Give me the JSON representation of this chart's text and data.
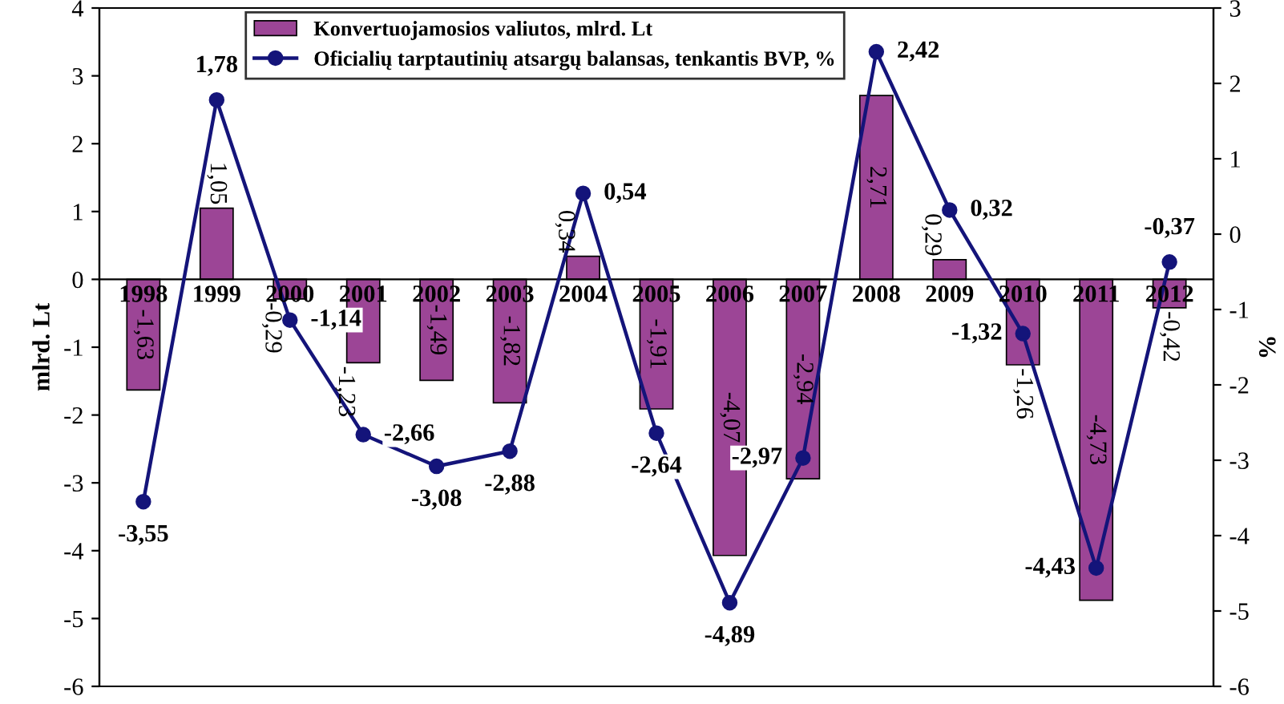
{
  "chart_data": {
    "type": "bar",
    "categories": [
      "1998",
      "1999",
      "2000",
      "2001",
      "2002",
      "2003",
      "2004",
      "2005",
      "2006",
      "2007",
      "2008",
      "2009",
      "2010",
      "2011",
      "2012"
    ],
    "ylabel": "mlrd. Lt",
    "y2label": "%",
    "ylim": [
      -6,
      4
    ],
    "yticks": [
      -6,
      -5,
      -4,
      -3,
      -2,
      -1,
      0,
      1,
      2,
      3,
      4
    ],
    "y2lim": [
      -6,
      3
    ],
    "y2ticks": [
      -6,
      -5,
      -4,
      -3,
      -2,
      -1,
      0,
      1,
      2,
      3
    ],
    "grid": false,
    "legend": "top",
    "marker": "circle",
    "line_style": "solid",
    "series": [
      {
        "name": "Konvertuojamosios valiutos, mlrd. Lt",
        "color": "#9c4596",
        "values": [
          -1.63,
          1.05,
          -0.29,
          -1.23,
          -1.49,
          -1.82,
          0.34,
          -1.91,
          -4.07,
          -2.94,
          2.71,
          0.29,
          -1.26,
          -4.73,
          -0.42
        ],
        "value_labels": [
          "-1,63",
          "1,05",
          "-0,29",
          "-1,23",
          "-1,49",
          "-1,82",
          "0,34",
          "-1,91",
          "-4,07",
          "-2,94",
          "2,71",
          "0,29",
          "-1,26",
          "-4,73",
          "-0,42"
        ]
      },
      {
        "name": "Oficialių tarptautinių atsargų balansas, tenkantis BVP, %",
        "type": "line",
        "axis": "y2",
        "color": "#14147a",
        "values": [
          -3.55,
          1.78,
          -1.14,
          -2.66,
          -3.08,
          -2.88,
          0.54,
          -2.64,
          -4.89,
          -2.97,
          2.42,
          0.32,
          -1.32,
          -4.43,
          -0.37
        ],
        "value_labels": [
          "-3,55",
          "1,78",
          "-1,14",
          "-2,66",
          "-3,08",
          "-2,88",
          "0,54",
          "-2,64",
          "-4,89",
          "-2,97",
          "2,42",
          "0,32",
          "-1,32",
          "-4,43",
          "-0,37"
        ]
      }
    ]
  }
}
